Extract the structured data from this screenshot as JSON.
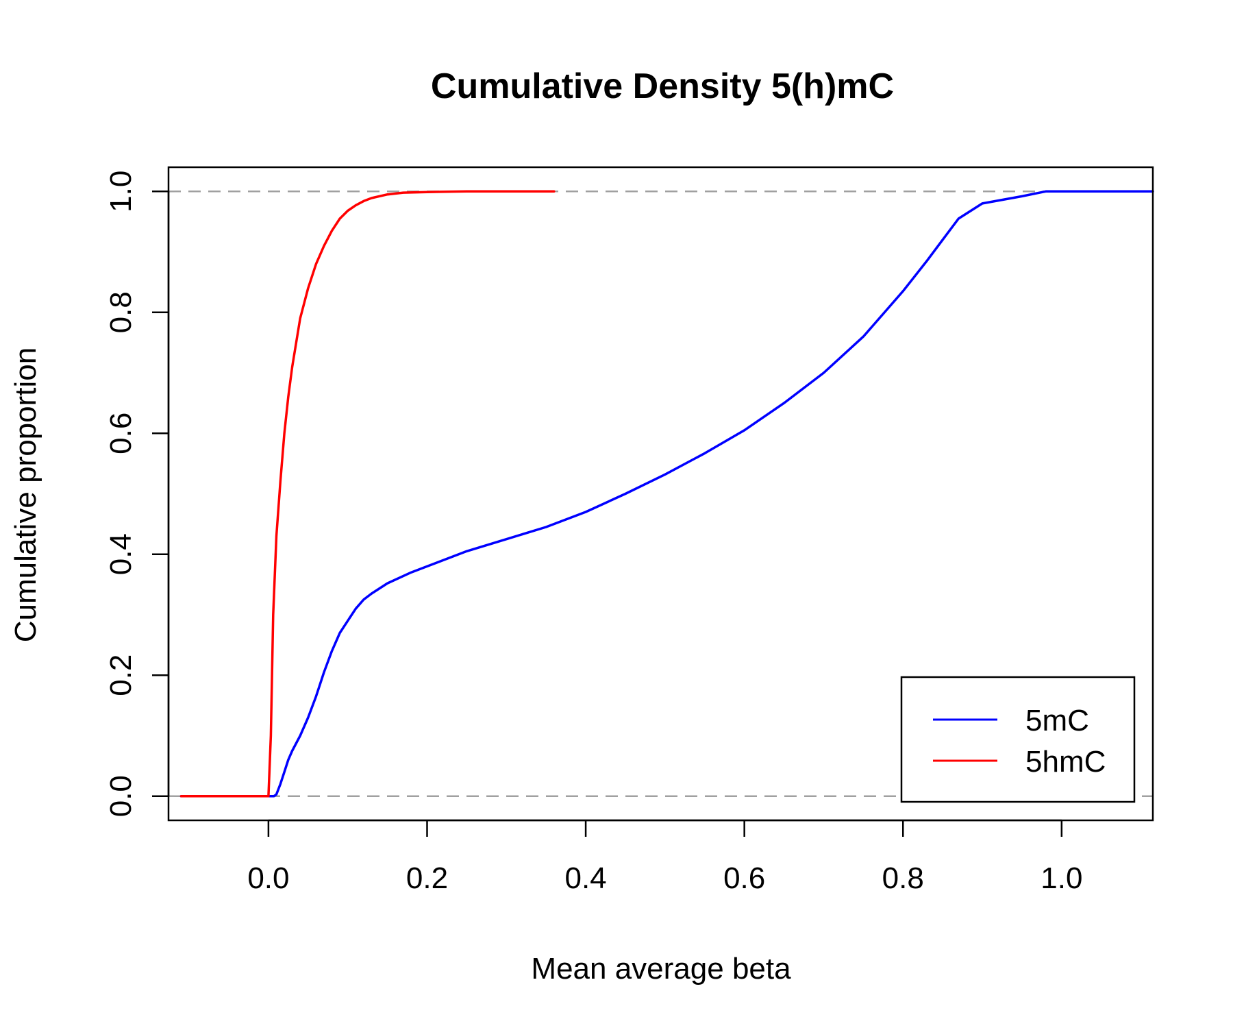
{
  "chart_data": {
    "type": "line",
    "title": "Cumulative Density 5(h)mC",
    "xlabel": "Mean average beta",
    "ylabel": "Cumulative proportion",
    "xlim": [
      -0.126,
      1.115
    ],
    "ylim": [
      -0.04,
      1.04
    ],
    "x_ticks": [
      "0.0",
      "0.2",
      "0.4",
      "0.6",
      "0.8",
      "1.0"
    ],
    "y_ticks": [
      "0.0",
      "0.2",
      "0.4",
      "0.6",
      "0.8",
      "1.0"
    ],
    "grid": false,
    "legend_position": "bottom-right",
    "reference_lines": [
      {
        "y": 0,
        "style": "dashed",
        "color": "#a0a0a0"
      },
      {
        "y": 1,
        "style": "dashed",
        "color": "#a0a0a0"
      }
    ],
    "series": [
      {
        "name": "5mC",
        "color": "#0000ff",
        "x": [
          -0.11,
          0.007,
          0.01,
          0.015,
          0.02,
          0.025,
          0.03,
          0.04,
          0.05,
          0.06,
          0.07,
          0.08,
          0.09,
          0.1,
          0.11,
          0.12,
          0.13,
          0.15,
          0.18,
          0.2,
          0.25,
          0.3,
          0.35,
          0.4,
          0.45,
          0.5,
          0.55,
          0.6,
          0.65,
          0.7,
          0.75,
          0.8,
          0.83,
          0.85,
          0.87,
          0.9,
          0.95,
          0.98,
          1.0,
          1.115
        ],
        "values": [
          0,
          0,
          0.003,
          0.02,
          0.04,
          0.06,
          0.075,
          0.1,
          0.13,
          0.165,
          0.205,
          0.24,
          0.27,
          0.29,
          0.31,
          0.325,
          0.335,
          0.352,
          0.37,
          0.38,
          0.405,
          0.425,
          0.445,
          0.47,
          0.5,
          0.532,
          0.567,
          0.605,
          0.65,
          0.7,
          0.76,
          0.835,
          0.885,
          0.92,
          0.955,
          0.98,
          0.992,
          1.0,
          1.0,
          1.0
        ]
      },
      {
        "name": "5hmC",
        "color": "#ff0000",
        "x": [
          -0.11,
          0.0,
          0.003,
          0.006,
          0.01,
          0.015,
          0.02,
          0.025,
          0.03,
          0.035,
          0.04,
          0.05,
          0.06,
          0.07,
          0.08,
          0.09,
          0.1,
          0.11,
          0.12,
          0.13,
          0.15,
          0.17,
          0.2,
          0.25,
          0.3,
          0.36
        ],
        "values": [
          0,
          0,
          0.1,
          0.3,
          0.43,
          0.52,
          0.6,
          0.66,
          0.71,
          0.75,
          0.79,
          0.84,
          0.88,
          0.91,
          0.935,
          0.955,
          0.968,
          0.977,
          0.984,
          0.989,
          0.995,
          0.998,
          0.999,
          1.0,
          1.0,
          1.0
        ]
      }
    ]
  }
}
